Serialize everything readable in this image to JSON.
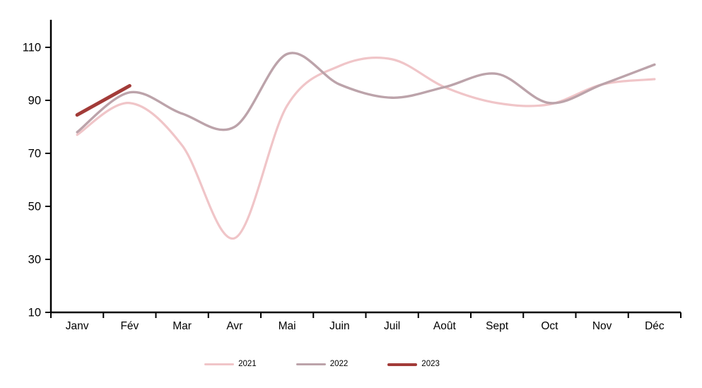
{
  "chart_data": {
    "type": "line",
    "title": "",
    "xlabel": "",
    "ylabel": "",
    "grid": false,
    "categories": [
      "Janv",
      "Fév",
      "Mar",
      "Avr",
      "Mai",
      "Juin",
      "Juil",
      "Août",
      "Sept",
      "Oct",
      "Nov",
      "Déc"
    ],
    "y_axis": {
      "min": 10,
      "max": 110,
      "tick_step": 20,
      "ticks": [
        110,
        90,
        70,
        50,
        30,
        10
      ]
    },
    "series": [
      {
        "name": "2021",
        "color": "#F0C5C8",
        "width": 3.2,
        "smooth": true,
        "values": [
          77,
          89,
          73,
          38,
          88,
          103,
          105.5,
          95,
          89,
          88.5,
          96,
          98
        ]
      },
      {
        "name": "2022",
        "color": "#BCA3AA",
        "width": 3.4,
        "smooth": true,
        "values": [
          78,
          93,
          85,
          80,
          107.5,
          96,
          91,
          95,
          100,
          89,
          96,
          103.5
        ]
      },
      {
        "name": "2023",
        "color": "#A23B38",
        "width": 5,
        "smooth": false,
        "values": [
          84.5,
          95.5,
          null,
          null,
          null,
          null,
          null,
          null,
          null,
          null,
          null,
          null
        ]
      }
    ],
    "legend": {
      "position": "bottom",
      "entries": [
        "2021",
        "2022",
        "2023"
      ]
    },
    "style": {
      "axis_color": "#000000",
      "text_color": "#000000",
      "background": "#ffffff"
    }
  }
}
